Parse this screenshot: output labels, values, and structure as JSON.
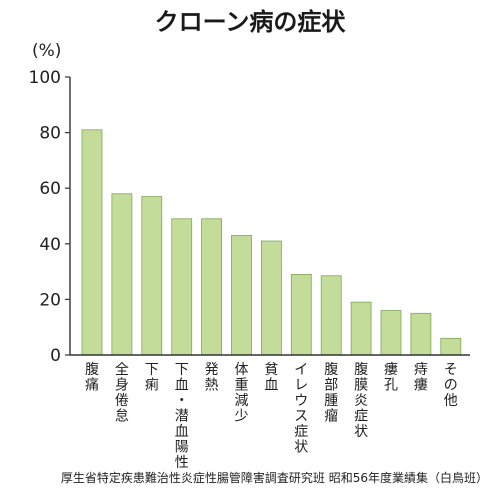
{
  "chart_data": {
    "type": "bar",
    "title": "クローン病の症状",
    "ylabel": "(%)",
    "xlabel": "",
    "ylim": [
      0,
      100
    ],
    "yticks": [
      0,
      20,
      40,
      60,
      80,
      100
    ],
    "grid": false,
    "categories": [
      "腹痛",
      "全身倦怠",
      "下痢",
      "下血・潜血陽性",
      "発熱",
      "体重減少",
      "貧血",
      "イレウス症状",
      "腹部腫瘤",
      "腹膜炎症状",
      "瘻孔",
      "痔瘻",
      "その他"
    ],
    "values": [
      81,
      58,
      57,
      49,
      49,
      43,
      41,
      29,
      28.5,
      19,
      16,
      15,
      6
    ],
    "colors": {
      "bar_fill": "#c4dc9a",
      "bar_edge": "#7fa55a",
      "axis": "#333333"
    },
    "source": "厚生省特定疾患難治性炎症性腸管障害調査研究班 昭和56年度業績集（白鳥班）"
  }
}
